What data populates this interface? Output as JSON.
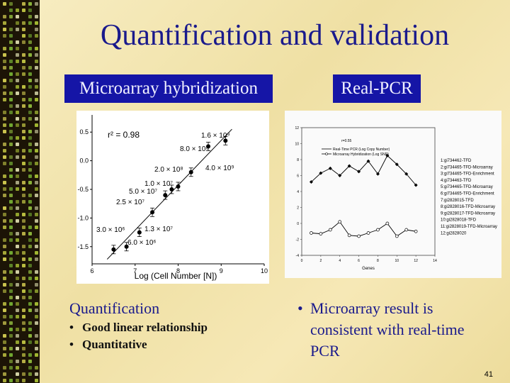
{
  "slide": {
    "title": "Quantification and validation",
    "page_number": "41"
  },
  "headers": {
    "left": "Microarray hybridization",
    "right": "Real-PCR"
  },
  "left_chart": {
    "r2": "r² = 0.98",
    "xlabel": "Log (Cell Number [N])",
    "x_ticks": [
      "6",
      "7",
      "8",
      "9",
      "10"
    ],
    "y_ticks": [
      "0.5",
      "0.0",
      "-0.5",
      "-1.0",
      "-1.5"
    ],
    "annotations": [
      "1.6 × 10⁹",
      "8.0 × 10⁸",
      "4.0 × 10⁹",
      "2.0 × 10⁸",
      "1.0 × 10⁷",
      "5.0 × 10⁷",
      "2.5 × 10⁷",
      "3.0 × 10⁶",
      "1.3 × 10⁷",
      "6.0 × 10⁶"
    ]
  },
  "right_chart": {
    "xlabel": "Genes",
    "r_label": "r=0.55",
    "x_ticks": [
      "0",
      "2",
      "4",
      "6",
      "8",
      "10",
      "12",
      "14"
    ],
    "y_ticks": [
      "12",
      "10",
      "8",
      "6",
      "4",
      "2",
      "0",
      "-2",
      "-4"
    ],
    "legend": [
      "Real-Time PCR (Log Copy Number)",
      "Microarray Hybridization (Log SNR)"
    ],
    "gene_list": [
      "1:gi734462-TFD",
      "2:gi734465-TFD-Microarray",
      "3:gi734465-TFD-Enrichment",
      "4:gi734463-TFD",
      "5:gi734465-TFD-Microarray",
      "6:gi734465-TFD-Enrichment",
      "7:gi2828015-TFD",
      "8:gi2828016-TFD-Microarray",
      "9:gi2828017-TFD-Microarray",
      "10:gi2828018-TFD",
      "11:gi2828019-TFD-Microarray",
      "12:gi2828020"
    ]
  },
  "quantification": {
    "heading": "Quantification",
    "bullets": [
      "Good linear relationship",
      "Quantitative"
    ]
  },
  "validation": {
    "bullets": [
      "Microarray result is consistent with real-time PCR"
    ]
  },
  "chart_data": [
    {
      "type": "scatter",
      "title": "",
      "xlabel": "Log (Cell Number [N])",
      "ylabel": "",
      "xlim": [
        6,
        10
      ],
      "ylim": [
        -1.8,
        0.8
      ],
      "x": [
        6.5,
        6.8,
        7.1,
        7.4,
        7.7,
        7.85,
        8.0,
        8.3,
        8.7,
        9.1
      ],
      "y": [
        -1.55,
        -1.5,
        -1.25,
        -0.9,
        -0.6,
        -0.5,
        -0.45,
        -0.2,
        0.25,
        0.35
      ],
      "grid": false
    },
    {
      "type": "line",
      "title": "",
      "xlabel": "Genes",
      "xlim": [
        0,
        14
      ],
      "ylim": [
        -4,
        12
      ],
      "x": [
        1,
        2,
        3,
        4,
        5,
        6,
        7,
        8,
        9,
        10,
        11,
        12
      ],
      "series": [
        {
          "name": "Real-Time PCR (Log Copy Number)",
          "values": [
            5.2,
            6.3,
            6.9,
            6.0,
            7.2,
            6.5,
            7.8,
            6.2,
            8.5,
            7.4,
            6.2,
            4.8
          ]
        },
        {
          "name": "Microarray Hybridization (Log SNR)",
          "values": [
            -1.2,
            -1.3,
            -0.8,
            0.2,
            -1.5,
            -1.6,
            -1.2,
            -0.8,
            0.0,
            -1.6,
            -0.8,
            -1.0
          ]
        }
      ],
      "legend": "top-left"
    }
  ]
}
